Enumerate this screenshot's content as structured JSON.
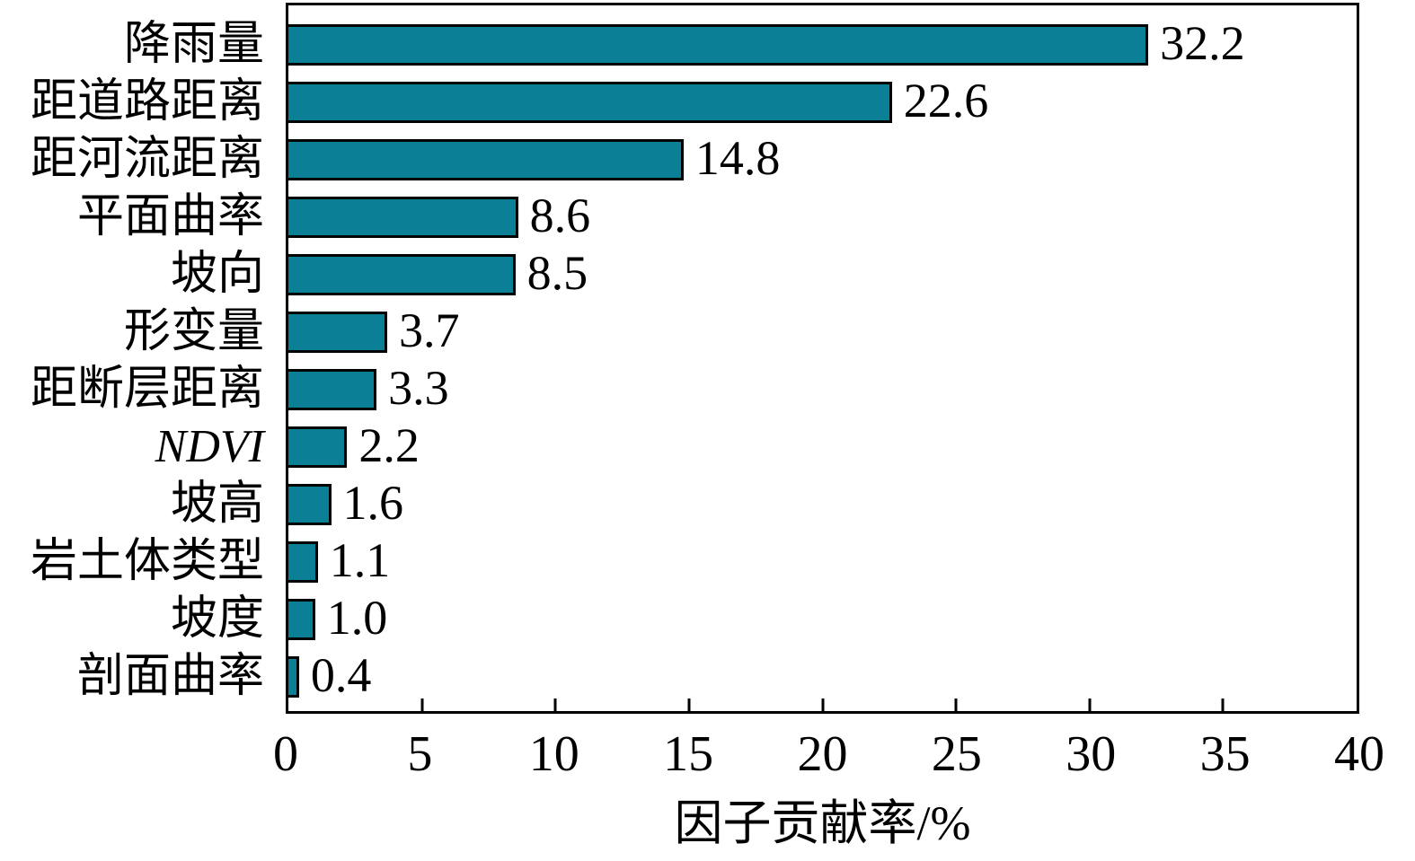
{
  "chart_data": {
    "type": "bar",
    "orientation": "horizontal",
    "title": "",
    "xlabel": "因子贡献率/%",
    "ylabel": "",
    "xlim": [
      0,
      40
    ],
    "xticks": [
      0,
      5,
      10,
      15,
      20,
      25,
      30,
      35,
      40
    ],
    "grid": false,
    "legend": false,
    "bar_color": "#0a7f95",
    "bar_border_color": "#000000",
    "categories": [
      "降雨量",
      "距道路距离",
      "距河流距离",
      "平面曲率",
      "坡向",
      "形变量",
      "距断层距离",
      "NDVI",
      "坡高",
      "岩土体类型",
      "坡度",
      "剖面曲率"
    ],
    "values": [
      32.2,
      22.6,
      14.8,
      8.6,
      8.5,
      3.7,
      3.3,
      2.2,
      1.6,
      1.1,
      1.0,
      0.4
    ],
    "value_labels": [
      "32.2",
      "22.6",
      "14.8",
      "8.6",
      "8.5",
      "3.7",
      "3.3",
      "2.2",
      "1.6",
      "1.1",
      "1.0",
      "0.4"
    ],
    "italic_categories": [
      "NDVI"
    ]
  }
}
